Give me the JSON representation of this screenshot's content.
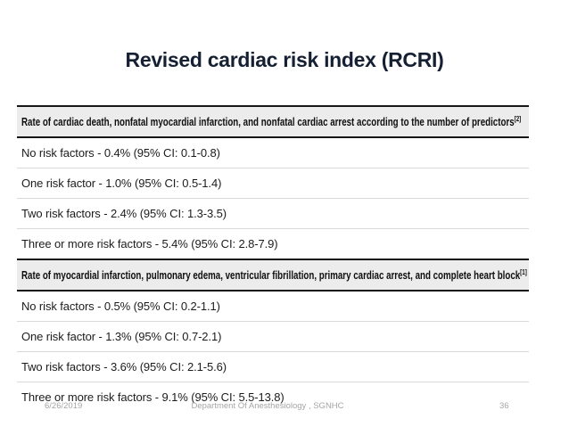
{
  "slide": {
    "title": "Revised cardiac risk index (RCRI)",
    "footer": {
      "date": "6/26/2019",
      "department": "Department Of Anesthesiology , SGNHC",
      "page_number": "36"
    }
  },
  "table": {
    "sections": [
      {
        "header": "Rate of cardiac death, nonfatal myocardial infarction, and nonfatal cardiac arrest according to the number of predictors",
        "header_ref": "[2]",
        "rows": [
          "No risk factors - 0.4% (95% CI: 0.1-0.8)",
          "One risk factor - 1.0% (95% CI: 0.5-1.4)",
          "Two risk factors - 2.4% (95% CI: 1.3-3.5)",
          "Three or more risk factors - 5.4% (95% CI: 2.8-7.9)"
        ]
      },
      {
        "header": "Rate of myocardial infarction, pulmonary edema, ventricular fibrillation, primary cardiac arrest, and complete heart block",
        "header_ref": "[1]",
        "rows": [
          "No risk factors - 0.5% (95% CI: 0.2-1.1)",
          "One risk factor - 1.3% (95% CI: 0.7-2.1)",
          "Two risk factors - 3.6% (95% CI: 2.1-5.6)",
          "Three or more risk factors - 9.1% (95% CI: 5.5-13.8)"
        ]
      }
    ]
  },
  "colors": {
    "title_text": "#162033",
    "section_header_bg": "#ececec",
    "dark_border": "#161616",
    "row_divider": "#d9d9d9",
    "footer_text": "#a6a6a6"
  }
}
